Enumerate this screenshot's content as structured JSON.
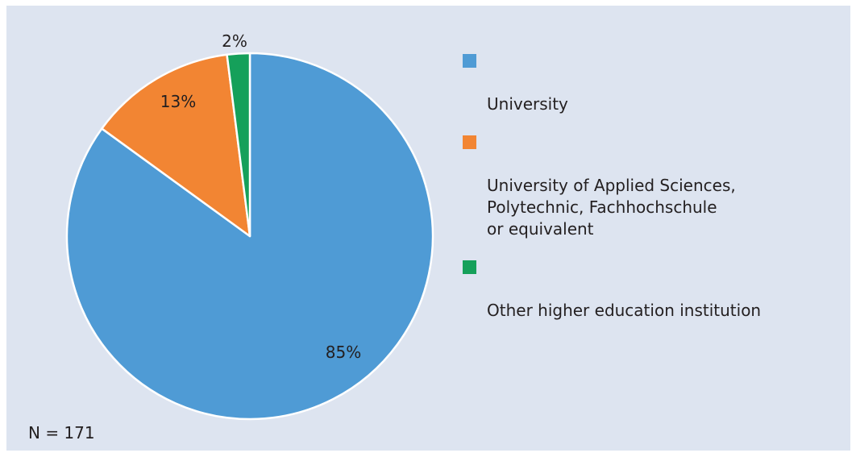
{
  "chart_data": {
    "type": "pie",
    "slices": [
      {
        "label": "University",
        "value": 85,
        "label_text": "85%",
        "color": "#4f9bd5"
      },
      {
        "label": "University of Applied Sciences,\nPolytechnic, Fachhochschule\nor equivalent",
        "value": 13,
        "label_text": "13%",
        "color": "#f28533"
      },
      {
        "label": "Other higher education institution",
        "value": 2,
        "label_text": "2%",
        "color": "#15a05a"
      }
    ],
    "legend_placement": "right",
    "note": "N = 171"
  },
  "colors": {
    "background": "#dde4f0",
    "slice_border": "#ffffff"
  }
}
